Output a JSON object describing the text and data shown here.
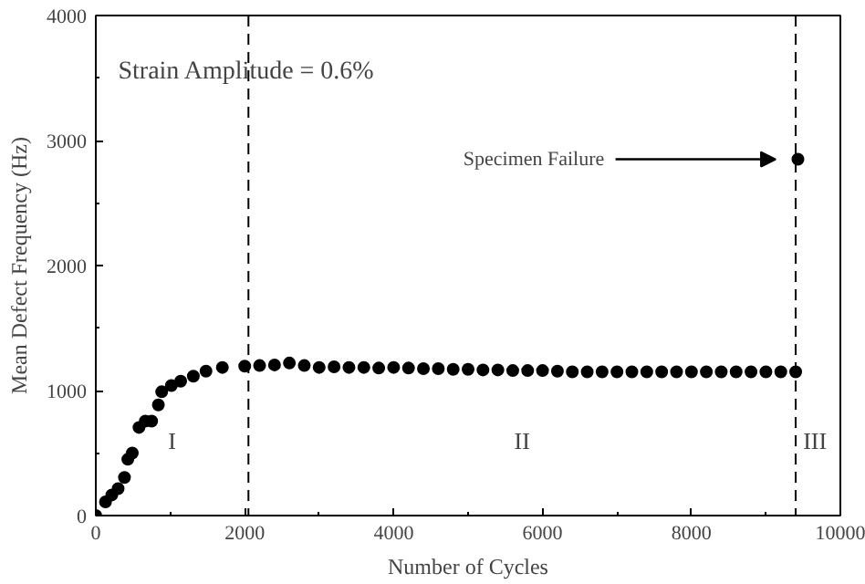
{
  "chart_data": {
    "type": "scatter",
    "xlabel": "Number of Cycles",
    "ylabel": "Mean Defect Frequency (Hz)",
    "x": [
      0,
      130,
      215,
      300,
      385,
      430,
      490,
      580,
      665,
      750,
      840,
      885,
      1015,
      1140,
      1310,
      1480,
      1700,
      2000,
      2200,
      2400,
      2600,
      2800,
      3000,
      3200,
      3400,
      3600,
      3800,
      4000,
      4200,
      4400,
      4600,
      4800,
      5000,
      5200,
      5400,
      5600,
      5800,
      6000,
      6200,
      6400,
      6600,
      6800,
      7000,
      7200,
      7400,
      7600,
      7800,
      8000,
      8200,
      8400,
      8600,
      8800,
      9000,
      9200,
      9400,
      9430
    ],
    "values": [
      0,
      110,
      165,
      215,
      305,
      450,
      500,
      705,
      755,
      755,
      885,
      990,
      1040,
      1075,
      1115,
      1155,
      1185,
      1195,
      1200,
      1205,
      1220,
      1200,
      1185,
      1190,
      1185,
      1185,
      1180,
      1185,
      1180,
      1175,
      1175,
      1170,
      1170,
      1165,
      1165,
      1160,
      1160,
      1160,
      1155,
      1150,
      1150,
      1150,
      1150,
      1150,
      1150,
      1150,
      1150,
      1150,
      1150,
      1150,
      1150,
      1150,
      1150,
      1150,
      1150,
      2850
    ],
    "color": "#000000",
    "marker": "circle",
    "xlim": [
      0,
      10000
    ],
    "ylim": [
      0,
      4000
    ],
    "xticks": [
      0,
      2000,
      4000,
      6000,
      8000,
      10000
    ],
    "yticks": [
      0,
      1000,
      2000,
      3000,
      4000
    ],
    "grid": false,
    "ref_lines": [
      {
        "axis": "x",
        "value": 2050,
        "label": null,
        "line_style": "dashed",
        "color": "#000000"
      },
      {
        "axis": "x",
        "value": 9400,
        "label": null,
        "line_style": "dashed",
        "color": "#000000"
      }
    ],
    "annotations": [
      "Strain Amplitude = 0.6%",
      "I",
      "II",
      "III",
      "Specimen Failure"
    ]
  }
}
